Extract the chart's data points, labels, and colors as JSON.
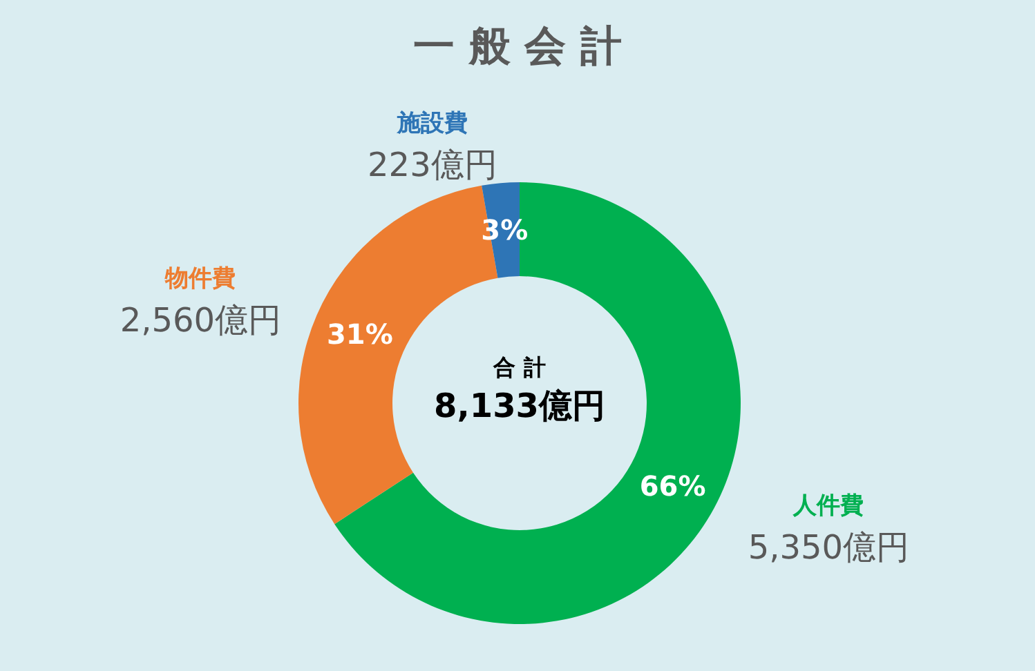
{
  "chart_data": {
    "type": "donut",
    "title": "一 般 会 計",
    "categories": [
      "人件費",
      "物件費",
      "施設費"
    ],
    "values": [
      5350,
      2560,
      223
    ],
    "colors": [
      "#00b050",
      "#ed7d31",
      "#2e75b6"
    ],
    "value_labels": [
      "5,350億円",
      "2,560億円",
      "223億円"
    ],
    "annotations": [
      "合 計",
      "8,133億円",
      {
        "text": "66%",
        "x": "人件費"
      },
      {
        "text": "31%",
        "x": "物件費"
      },
      {
        "text": "3%",
        "x": "施設費"
      }
    ],
    "legend": false
  }
}
